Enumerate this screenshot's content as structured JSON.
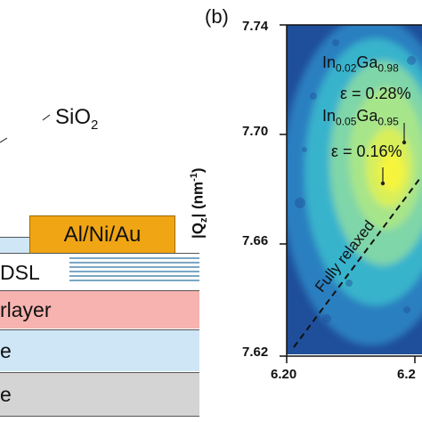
{
  "panel_a": {
    "sio2_label": "SiO",
    "sio2_sub": "2",
    "contact_label": "Al/Ni/Au",
    "layers": [
      {
        "label": "DSL",
        "color": "#ffffff"
      },
      {
        "label": "rlayer",
        "color": "#f6b3b0"
      },
      {
        "label": "e",
        "color": "#cfe6f7"
      },
      {
        "label": "e",
        "color": "#d4d4d4"
      }
    ],
    "colors": {
      "contact": "#f0a515",
      "dsl_lines": "#7aa6c4"
    }
  },
  "panel_b": {
    "panel_label": "(b)",
    "y_axis_label": "|Q",
    "y_axis_sub": "z",
    "y_axis_unit": "| (nm",
    "y_axis_unit_sup": "-1",
    "y_axis_unit_close": ")",
    "annotations": {
      "in002_in": "In",
      "in002_in_sub": "0.02",
      "in002_ga": "Ga",
      "in002_ga_sub": "0.98",
      "eps1": "ε = 0.28%",
      "in005_in": "In",
      "in005_in_sub": "0.05",
      "in005_ga": "Ga",
      "in005_ga_sub": "0.95",
      "eps2": "ε = 0.16%",
      "relaxed": "Fully relaxed"
    }
  },
  "chart_data": {
    "type": "heatmap",
    "title": "",
    "xlabel": "",
    "ylabel": "|Qz| (nm-1)",
    "yticks": [
      "7.74",
      "7.70",
      "7.66",
      "7.62"
    ],
    "xticks": [
      "6.20",
      "6.2"
    ],
    "ylim": [
      7.62,
      7.74
    ],
    "colormap": [
      "#1f4e9a",
      "#2a7fc0",
      "#38b3cc",
      "#7fd6a8",
      "#d8ef5a",
      "#f6f43c"
    ]
  }
}
